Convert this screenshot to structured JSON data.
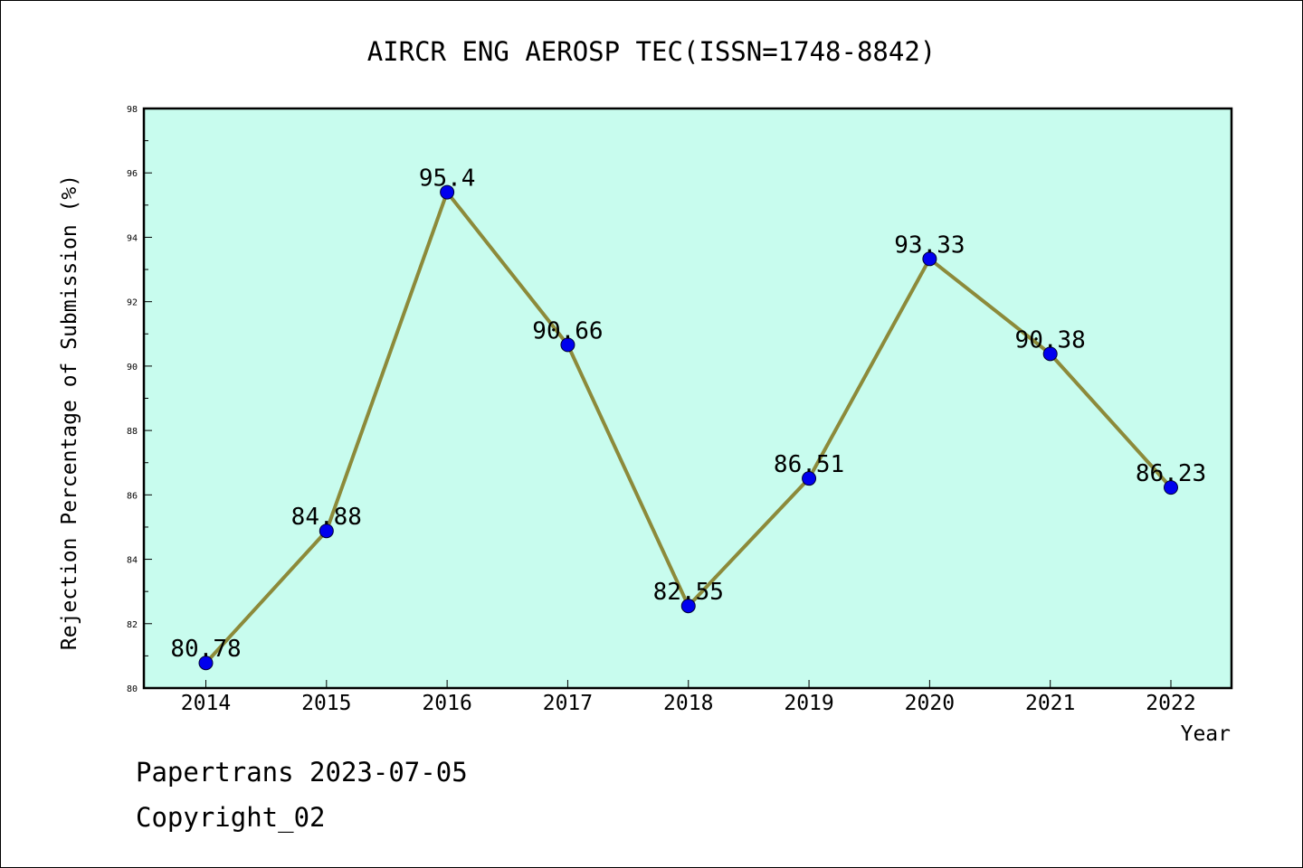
{
  "chart_data": {
    "type": "line",
    "title": "AIRCR ENG AEROSP TEC(ISSN=1748-8842)",
    "xlabel": "Year",
    "ylabel": "Rejection Percentage of Submission (%)",
    "categories": [
      "2014",
      "2015",
      "2016",
      "2017",
      "2018",
      "2019",
      "2020",
      "2021",
      "2022"
    ],
    "series": [
      {
        "values": [
          80.78,
          84.88,
          95.4,
          90.66,
          82.55,
          86.51,
          93.33,
          90.38,
          86.23
        ],
        "labels": [
          "80.78",
          "84.88",
          "95.4",
          "90.66",
          "82.55",
          "86.51",
          "93.33",
          "90.38",
          "86.23"
        ]
      }
    ],
    "ylim": [
      80,
      98
    ],
    "yticks": [
      "80",
      "82",
      "84",
      "86",
      "88",
      "90",
      "92",
      "94",
      "96",
      "98"
    ],
    "grid": false,
    "colors": {
      "plot_background": "#c8fcee",
      "line": "#8c8a3a",
      "marker": "#0000ee"
    }
  },
  "footer": {
    "line1": "Papertrans 2023-07-05",
    "line2": "Copyright_02"
  }
}
